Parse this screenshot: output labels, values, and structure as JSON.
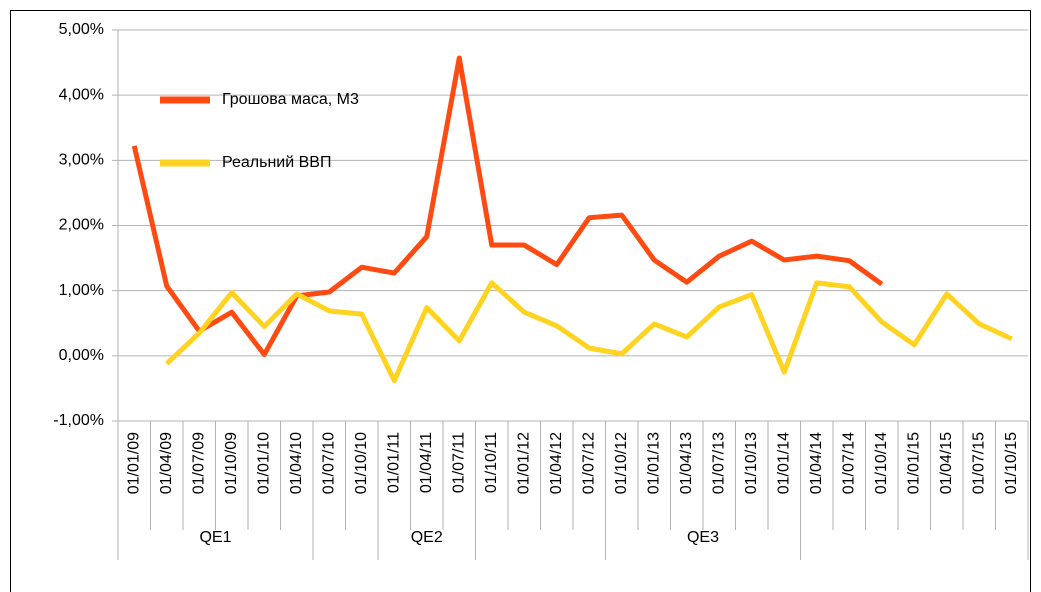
{
  "chart_data": {
    "type": "line",
    "categories": [
      "01/01/09",
      "01/04/09",
      "01/07/09",
      "01/10/09",
      "01/01/10",
      "01/04/10",
      "01/07/10",
      "01/10/10",
      "01/01/11",
      "01/04/11",
      "01/07/11",
      "01/10/11",
      "01/01/12",
      "01/04/12",
      "01/07/12",
      "01/10/12",
      "01/01/13",
      "01/04/13",
      "01/07/13",
      "01/10/13",
      "01/01/14",
      "01/04/14",
      "01/07/14",
      "01/10/14",
      "01/01/15",
      "01/04/15",
      "01/07/15",
      "01/10/15"
    ],
    "groups": [
      {
        "label": "QE1",
        "first": "01/01/09",
        "last": "01/04/10"
      },
      {
        "label": "QE2",
        "first": "01/01/11",
        "last": "01/07/11"
      },
      {
        "label": "QE3",
        "first": "01/10/12",
        "last": "01/01/14"
      }
    ],
    "series": [
      {
        "name": "Грошова маса, М3",
        "color": "#ff4a12",
        "values": [
          3.22,
          1.07,
          0.38,
          0.67,
          0.02,
          0.92,
          0.98,
          1.36,
          1.27,
          1.83,
          4.57,
          1.7,
          1.7,
          1.4,
          2.12,
          2.16,
          1.47,
          1.13,
          1.53,
          1.76,
          1.47,
          1.53,
          1.46,
          1.1,
          null,
          null,
          null,
          null
        ]
      },
      {
        "name": "Реальний ВВП",
        "color": "#ffd320",
        "values": [
          null,
          -0.12,
          0.35,
          0.97,
          0.45,
          0.95,
          0.69,
          0.64,
          -0.38,
          0.74,
          0.23,
          1.12,
          0.67,
          0.46,
          0.12,
          0.03,
          0.49,
          0.29,
          0.75,
          0.94,
          -0.25,
          1.12,
          1.06,
          0.52,
          0.17,
          0.95,
          0.49,
          0.26
        ]
      }
    ],
    "ylim": [
      -1,
      5
    ],
    "yticks": [
      {
        "value": -1,
        "label": "-1,00%"
      },
      {
        "value": 0,
        "label": "0,00%"
      },
      {
        "value": 1,
        "label": "1,00%"
      },
      {
        "value": 2,
        "label": "2,00%"
      },
      {
        "value": 3,
        "label": "3,00%"
      },
      {
        "value": 4,
        "label": "4,00%"
      },
      {
        "value": 5,
        "label": "5,00%"
      }
    ],
    "grid": true
  }
}
